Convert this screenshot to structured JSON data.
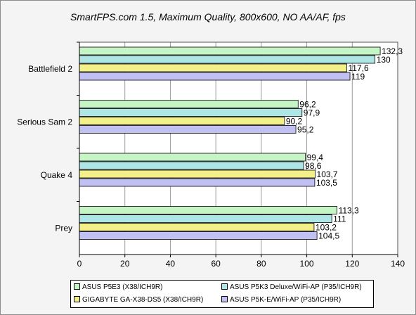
{
  "chart_data": {
    "type": "bar",
    "orientation": "horizontal",
    "title": "SmartFPS.com 1.5, Maximum Quality, 800x600, NO AA/AF, fps",
    "categories": [
      "Battlefield 2",
      "Serious Sam 2",
      "Quake 4",
      "Prey"
    ],
    "series": [
      {
        "name": "ASUS P5E3 (X38/ICH9R)",
        "color": "#c5f5c5",
        "values": [
          132.3,
          96.2,
          99.4,
          113.3
        ],
        "labels": [
          "132,3",
          "96,2",
          "99,4",
          "113,3"
        ]
      },
      {
        "name": "ASUS P5K3 Deluxe/WiFi-AP (P35/ICH9R)",
        "color": "#aee5e5",
        "values": [
          130,
          97.9,
          98.6,
          111
        ],
        "labels": [
          "130",
          "97,9",
          "98,6",
          "111"
        ]
      },
      {
        "name": "GIGABYTE GA-X38-DS5 (X38/ICH9R)",
        "color": "#f3f08a",
        "values": [
          117.6,
          90.2,
          103.7,
          103.2
        ],
        "labels": [
          "117,6",
          "90,2",
          "103,7",
          "103,2"
        ]
      },
      {
        "name": "ASUS P5K-E/WiFi-AP (P35/ICH9R)",
        "color": "#c0c0f2",
        "values": [
          119,
          95.2,
          103.5,
          104.5
        ],
        "labels": [
          "119",
          "95,2",
          "103,5",
          "104,5"
        ]
      }
    ],
    "xlim": [
      0,
      140
    ],
    "xticks": [
      0,
      20,
      40,
      60,
      80,
      100,
      120,
      140
    ],
    "xtick_labels": [
      "0",
      "20",
      "40",
      "60",
      "80",
      "100",
      "120",
      "140"
    ],
    "grid": true,
    "legend_position": "bottom"
  }
}
